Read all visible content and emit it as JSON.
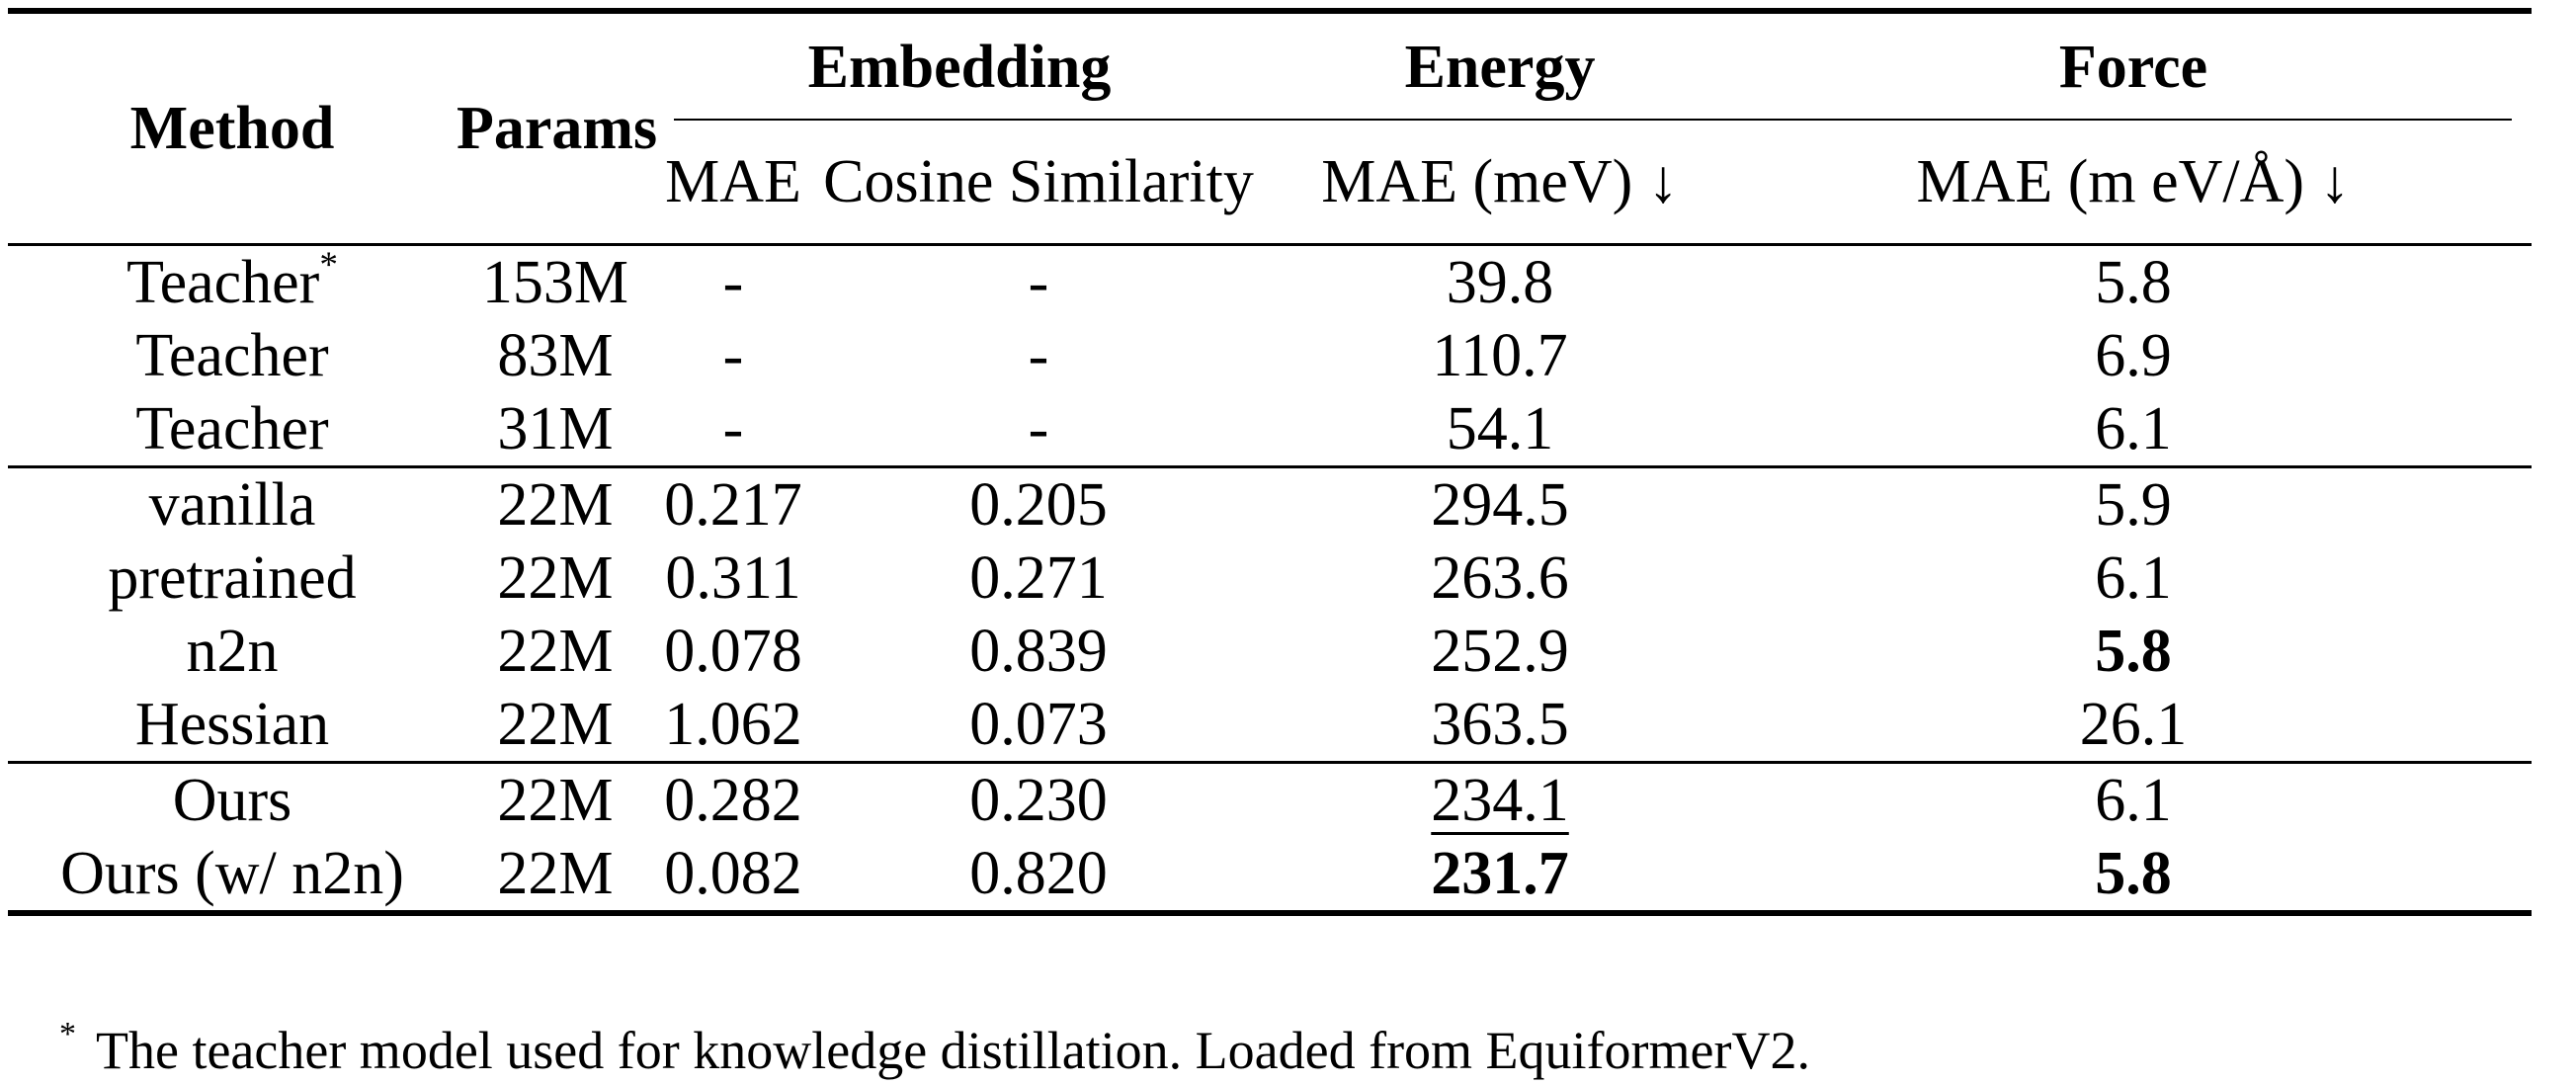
{
  "header": {
    "method": "Method",
    "params": "Params",
    "embedding": "Embedding",
    "energy": "Energy",
    "force": "Force",
    "emb_mae": "MAE",
    "emb_cos": "Cosine Similarity",
    "energy_mae": "MAE (meV) ↓",
    "force_mae": "MAE (m eV/Å) ↓"
  },
  "groups": [
    [
      {
        "method": "Teacher",
        "sup": "*",
        "params": "153M",
        "emb_mae": "-",
        "emb_cos": "-",
        "energy": "39.8",
        "force": "5.8"
      },
      {
        "method": "Teacher",
        "sup": "",
        "params": "83M",
        "emb_mae": "-",
        "emb_cos": "-",
        "energy": "110.7",
        "force": "6.9"
      },
      {
        "method": "Teacher",
        "sup": "",
        "params": "31M",
        "emb_mae": "-",
        "emb_cos": "-",
        "energy": "54.1",
        "force": "6.1"
      }
    ],
    [
      {
        "method": "vanilla",
        "params": "22M",
        "emb_mae": "0.217",
        "emb_cos": "0.205",
        "energy": "294.5",
        "force": "5.9"
      },
      {
        "method": "pretrained",
        "params": "22M",
        "emb_mae": "0.311",
        "emb_cos": "0.271",
        "energy": "263.6",
        "force": "6.1"
      },
      {
        "method": "n2n",
        "params": "22M",
        "emb_mae": "0.078",
        "emb_cos": "0.839",
        "energy": "252.9",
        "force": "5.8"
      },
      {
        "method": "Hessian",
        "params": "22M",
        "emb_mae": "1.062",
        "emb_cos": "0.073",
        "energy": "363.5",
        "force": "26.1"
      }
    ],
    [
      {
        "method": "Ours",
        "params": "22M",
        "emb_mae": "0.282",
        "emb_cos": "0.230",
        "energy": "234.1",
        "force": "6.1"
      },
      {
        "method": "Ours (w/ n2n)",
        "params": "22M",
        "emb_mae": "0.082",
        "emb_cos": "0.820",
        "energy": "231.7",
        "force": "5.8"
      }
    ]
  ],
  "footnote": {
    "mark": "*",
    "text": "The teacher model used for knowledge distillation. Loaded from EquiformerV2."
  }
}
